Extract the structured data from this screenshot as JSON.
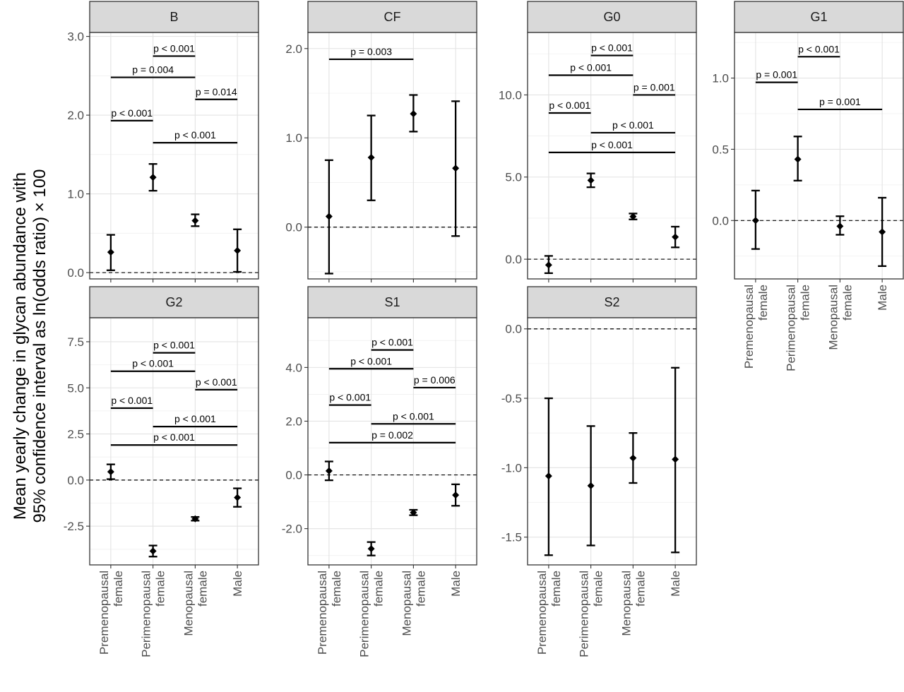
{
  "chart_data": {
    "type": "errorbar",
    "ylabel_line1": "Mean yearly change in glycan abundance with",
    "ylabel_line2": "95% confidence interval as ln(odds ratio) × 100",
    "categories": [
      [
        "Premenopausal",
        "female"
      ],
      [
        "Perimenopausal",
        "female"
      ],
      [
        "Menopausal",
        "female"
      ],
      [
        "Male"
      ]
    ],
    "reference_line": 0,
    "panels": [
      {
        "title": "B",
        "ylim": [
          -0.08,
          3.05
        ],
        "ticks": [
          0.0,
          1.0,
          2.0,
          3.0
        ],
        "tick_labels": [
          "0.0",
          "1.0",
          "2.0",
          "3.0"
        ],
        "points": [
          {
            "est": 0.26,
            "lo": 0.03,
            "hi": 0.48
          },
          {
            "est": 1.21,
            "lo": 1.04,
            "hi": 1.38
          },
          {
            "est": 0.66,
            "lo": 0.59,
            "hi": 0.74
          },
          {
            "est": 0.28,
            "lo": 0.01,
            "hi": 0.55
          }
        ],
        "comparisons": [
          {
            "from": 0,
            "to": 1,
            "y": 1.93,
            "label": "p < 0.001"
          },
          {
            "from": 0,
            "to": 2,
            "y": 2.48,
            "label": "p = 0.004"
          },
          {
            "from": 1,
            "to": 2,
            "y": 2.75,
            "label": "p < 0.001"
          },
          {
            "from": 1,
            "to": 3,
            "y": 1.65,
            "label": "p < 0.001"
          },
          {
            "from": 2,
            "to": 3,
            "y": 2.2,
            "label": "p = 0.014"
          }
        ]
      },
      {
        "title": "CF",
        "ylim": [
          -0.58,
          2.18
        ],
        "ticks": [
          0.0,
          1.0,
          2.0
        ],
        "tick_labels": [
          "0.0",
          "1.0",
          "2.0"
        ],
        "points": [
          {
            "est": 0.12,
            "lo": -0.52,
            "hi": 0.75
          },
          {
            "est": 0.78,
            "lo": 0.3,
            "hi": 1.25
          },
          {
            "est": 1.27,
            "lo": 1.07,
            "hi": 1.48
          },
          {
            "est": 0.66,
            "lo": -0.1,
            "hi": 1.41
          }
        ],
        "comparisons": [
          {
            "from": 0,
            "to": 2,
            "y": 1.88,
            "label": "p = 0.003"
          }
        ]
      },
      {
        "title": "G0",
        "ylim": [
          -1.2,
          13.8
        ],
        "ticks": [
          0.0,
          5.0,
          10.0
        ],
        "tick_labels": [
          "0.0",
          "5.0",
          "10.0"
        ],
        "points": [
          {
            "est": -0.35,
            "lo": -0.85,
            "hi": 0.2
          },
          {
            "est": 4.8,
            "lo": 4.38,
            "hi": 5.22
          },
          {
            "est": 2.6,
            "lo": 2.42,
            "hi": 2.78
          },
          {
            "est": 1.35,
            "lo": 0.72,
            "hi": 1.98
          }
        ],
        "comparisons": [
          {
            "from": 0,
            "to": 1,
            "y": 8.9,
            "label": "p < 0.001"
          },
          {
            "from": 0,
            "to": 2,
            "y": 11.2,
            "label": "p < 0.001"
          },
          {
            "from": 0,
            "to": 3,
            "y": 6.5,
            "label": "p < 0.001"
          },
          {
            "from": 1,
            "to": 2,
            "y": 12.4,
            "label": "p < 0.001"
          },
          {
            "from": 1,
            "to": 3,
            "y": 7.7,
            "label": "p < 0.001"
          },
          {
            "from": 2,
            "to": 3,
            "y": 10.0,
            "label": "p = 0.001"
          }
        ]
      },
      {
        "title": "G1",
        "ylim": [
          -0.41,
          1.32
        ],
        "ticks": [
          0.0,
          0.5,
          1.0
        ],
        "tick_labels": [
          "0.0",
          "0.5",
          "1.0"
        ],
        "points": [
          {
            "est": 0.0,
            "lo": -0.2,
            "hi": 0.21
          },
          {
            "est": 0.43,
            "lo": 0.28,
            "hi": 0.59
          },
          {
            "est": -0.04,
            "lo": -0.1,
            "hi": 0.03
          },
          {
            "est": -0.08,
            "lo": -0.32,
            "hi": 0.16
          }
        ],
        "comparisons": [
          {
            "from": 0,
            "to": 1,
            "y": 0.97,
            "label": "p = 0.001"
          },
          {
            "from": 1,
            "to": 2,
            "y": 1.15,
            "label": "p < 0.001"
          },
          {
            "from": 1,
            "to": 3,
            "y": 0.78,
            "label": "p = 0.001"
          }
        ]
      },
      {
        "title": "G2",
        "ylim": [
          -4.6,
          8.8
        ],
        "ticks": [
          -2.5,
          0.0,
          2.5,
          5.0,
          7.5
        ],
        "tick_labels": [
          "-2.5",
          "0.0",
          "2.5",
          "5.0",
          "7.5"
        ],
        "points": [
          {
            "est": 0.45,
            "lo": 0.05,
            "hi": 0.85
          },
          {
            "est": -3.85,
            "lo": -4.15,
            "hi": -3.55
          },
          {
            "est": -2.1,
            "lo": -2.2,
            "hi": -2.0
          },
          {
            "est": -0.95,
            "lo": -1.45,
            "hi": -0.45
          }
        ],
        "comparisons": [
          {
            "from": 0,
            "to": 1,
            "y": 3.9,
            "label": "p < 0.001"
          },
          {
            "from": 0,
            "to": 2,
            "y": 5.9,
            "label": "p < 0.001"
          },
          {
            "from": 0,
            "to": 3,
            "y": 1.9,
            "label": "p < 0.001"
          },
          {
            "from": 1,
            "to": 2,
            "y": 6.9,
            "label": "p < 0.001"
          },
          {
            "from": 1,
            "to": 3,
            "y": 2.9,
            "label": "p < 0.001"
          },
          {
            "from": 2,
            "to": 3,
            "y": 4.9,
            "label": "p < 0.001"
          }
        ]
      },
      {
        "title": "S1",
        "ylim": [
          -3.35,
          5.85
        ],
        "ticks": [
          -2.0,
          0.0,
          2.0,
          4.0
        ],
        "tick_labels": [
          "-2.0",
          "0.0",
          "2.0",
          "4.0"
        ],
        "points": [
          {
            "est": 0.15,
            "lo": -0.2,
            "hi": 0.5
          },
          {
            "est": -2.75,
            "lo": -3.0,
            "hi": -2.5
          },
          {
            "est": -1.4,
            "lo": -1.5,
            "hi": -1.3
          },
          {
            "est": -0.75,
            "lo": -1.15,
            "hi": -0.35
          }
        ],
        "comparisons": [
          {
            "from": 0,
            "to": 1,
            "y": 2.6,
            "label": "p < 0.001"
          },
          {
            "from": 0,
            "to": 2,
            "y": 3.95,
            "label": "p < 0.001"
          },
          {
            "from": 0,
            "to": 3,
            "y": 1.2,
            "label": "p = 0.002"
          },
          {
            "from": 1,
            "to": 2,
            "y": 4.65,
            "label": "p < 0.001"
          },
          {
            "from": 1,
            "to": 3,
            "y": 1.9,
            "label": "p < 0.001"
          },
          {
            "from": 2,
            "to": 3,
            "y": 3.25,
            "label": "p = 0.006"
          }
        ]
      },
      {
        "title": "S2",
        "ylim": [
          -1.7,
          0.08
        ],
        "ticks": [
          -1.5,
          -1.0,
          -0.5,
          0.0
        ],
        "tick_labels": [
          "-1.5",
          "-1.0",
          "-0.5",
          "0.0"
        ],
        "points": [
          {
            "est": -1.06,
            "lo": -1.63,
            "hi": -0.5
          },
          {
            "est": -1.13,
            "lo": -1.56,
            "hi": -0.7
          },
          {
            "est": -0.93,
            "lo": -1.11,
            "hi": -0.75
          },
          {
            "est": -0.94,
            "lo": -1.61,
            "hi": -0.28
          }
        ],
        "comparisons": []
      }
    ]
  }
}
